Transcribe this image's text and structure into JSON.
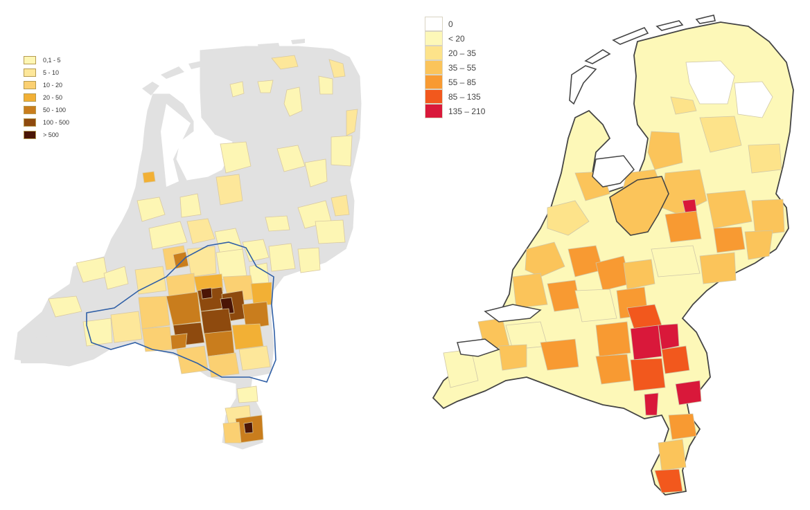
{
  "left_map": {
    "legend": [
      {
        "label": "0,1 - 5",
        "color": "#fdf6b4"
      },
      {
        "label": "5 - 10",
        "color": "#fde79a"
      },
      {
        "label": "10 - 20",
        "color": "#fbd072"
      },
      {
        "label": "20 - 50",
        "color": "#f2b035"
      },
      {
        "label": "50 - 100",
        "color": "#c97d1d"
      },
      {
        "label": "100 - 500",
        "color": "#8e4a0e"
      },
      {
        "label": "> 500",
        "color": "#4a1506"
      }
    ],
    "background_color": "#e1e1e1",
    "outline_color": "#2f5fa6"
  },
  "right_map": {
    "legend": [
      {
        "label": "0",
        "color": "#ffffff"
      },
      {
        "label": "< 20",
        "color": "#fdf8b8"
      },
      {
        "label": "20 – 35",
        "color": "#fde38a"
      },
      {
        "label": "35 – 55",
        "color": "#fbc45a"
      },
      {
        "label": "55 – 85",
        "color": "#f89a32"
      },
      {
        "label": "85 – 135",
        "color": "#f2581d"
      },
      {
        "label": "135 – 210",
        "color": "#d9183a"
      }
    ]
  }
}
